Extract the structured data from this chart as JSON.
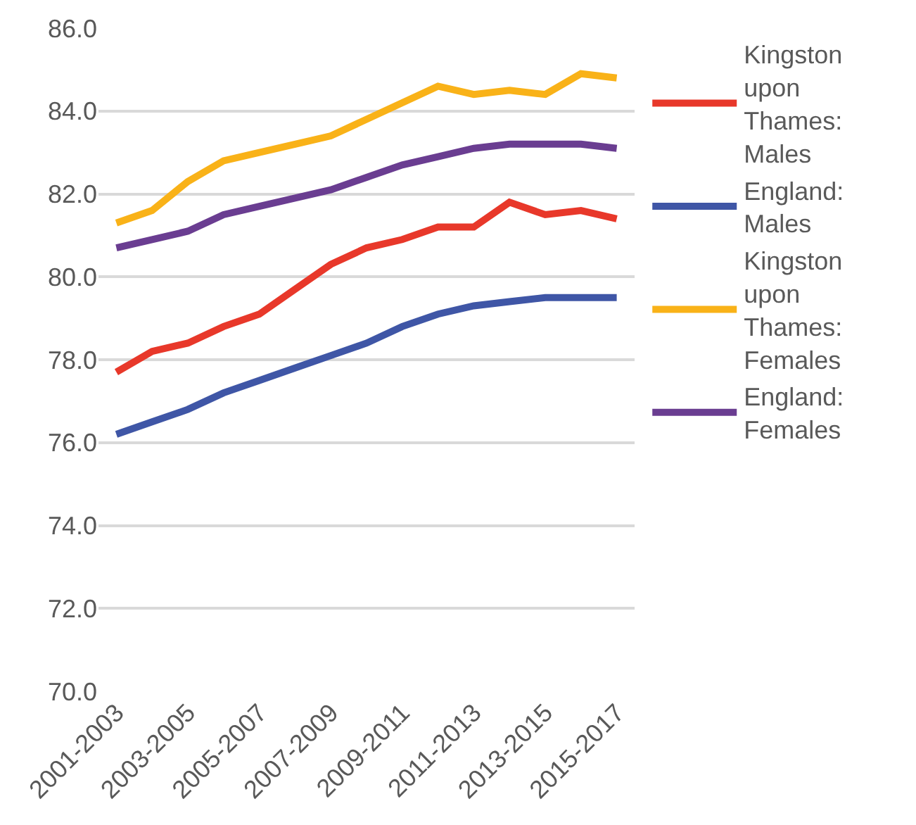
{
  "chart_data": {
    "type": "line",
    "categories": [
      "2001-2003",
      null,
      "2003-2005",
      null,
      "2005-2007",
      null,
      "2007-2009",
      null,
      "2009-2011",
      null,
      "2011-2013",
      null,
      "2013-2015",
      null,
      "2015-2017"
    ],
    "series": [
      {
        "name": "Kingston upon Thames: Males",
        "color": "#e8382a",
        "values": [
          77.7,
          78.2,
          78.4,
          78.8,
          79.1,
          79.7,
          80.3,
          80.7,
          80.9,
          81.2,
          81.2,
          81.8,
          81.5,
          81.6,
          81.4
        ]
      },
      {
        "name": "England: Males",
        "color": "#3f56a6",
        "values": [
          76.2,
          76.5,
          76.8,
          77.2,
          77.5,
          77.8,
          78.1,
          78.4,
          78.8,
          79.1,
          79.3,
          79.4,
          79.5,
          79.5,
          79.5
        ]
      },
      {
        "name": "Kingston upon Thames: Females",
        "color": "#f9b218",
        "values": [
          81.3,
          81.6,
          82.3,
          82.8,
          83.0,
          83.2,
          83.4,
          83.8,
          84.2,
          84.6,
          84.4,
          84.5,
          84.4,
          84.9,
          84.8
        ]
      },
      {
        "name": "England: Females",
        "color": "#6a3d91",
        "values": [
          80.7,
          80.9,
          81.1,
          81.5,
          81.7,
          81.9,
          82.1,
          82.4,
          82.7,
          82.9,
          83.1,
          83.2,
          83.2,
          83.2,
          83.1
        ]
      }
    ],
    "ylim": [
      70,
      86
    ],
    "yticks": [
      {
        "value": 70,
        "label": "70.0"
      },
      {
        "value": 72,
        "label": "72.0"
      },
      {
        "value": 74,
        "label": "74.0"
      },
      {
        "value": 76,
        "label": "76.0"
      },
      {
        "value": 78,
        "label": "78.0"
      },
      {
        "value": 80,
        "label": "80.0"
      },
      {
        "value": 82,
        "label": "82.0"
      },
      {
        "value": 84,
        "label": "84.0"
      },
      {
        "value": 86,
        "label": "86.0"
      }
    ],
    "grid": "y",
    "legend": "right",
    "marker": "none",
    "line_style": "solid"
  }
}
